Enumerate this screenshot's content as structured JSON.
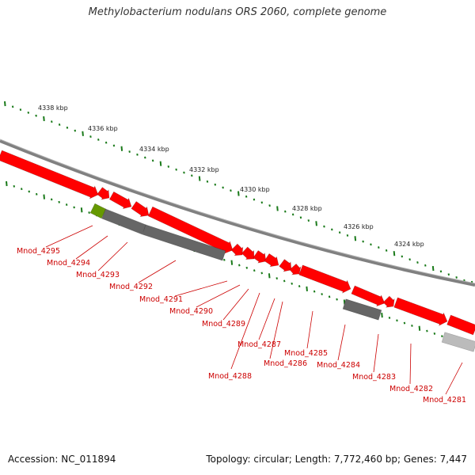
{
  "title": "Methylobacterium nodulans ORS 2060, complete genome",
  "footer": {
    "accession": "Accession: NC_011894",
    "summary": "Topology: circular; Length: 7,772,460 bp; Genes: 7,447"
  },
  "ticks": [
    "4338 kbp",
    "4336 kbp",
    "4334 kbp",
    "4332 kbp",
    "4330 kbp",
    "4328 kbp",
    "4326 kbp",
    "4324 kbp"
  ],
  "genes": [
    "Mnod_4295",
    "Mnod_4294",
    "Mnod_4293",
    "Mnod_4292",
    "Mnod_4291",
    "Mnod_4290",
    "Mnod_4289",
    "Mnod_4288",
    "Mnod_4287",
    "Mnod_4286",
    "Mnod_4285",
    "Mnod_4284",
    "Mnod_4283",
    "Mnod_4282",
    "Mnod_4281"
  ],
  "colors": {
    "cds": "#ff0000",
    "pseudo": "#666666",
    "rna": "#669900",
    "backbone": "#808080",
    "tick": "#1a7a1a",
    "label": "#cc0000"
  }
}
